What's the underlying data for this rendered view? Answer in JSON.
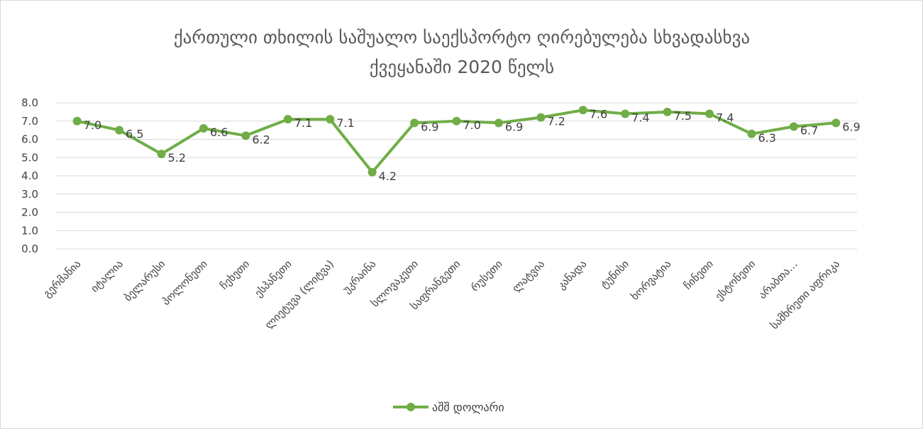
{
  "chart_data": {
    "type": "line",
    "title": "ქართული თხილის საშუალო საექსპორტო ღირებულება სხვადასხვა ქვეყანაში 2020 წელს",
    "title_lines": [
      "ქართული თხილის საშუალო საექსპორტო ღირებულება სხვადასხვა",
      "ქვეყანაში 2020 წელს"
    ],
    "xlabel": "",
    "ylabel": "",
    "ylim": [
      0,
      8
    ],
    "yticks": [
      "0.0",
      "1.0",
      "2.0",
      "3.0",
      "4.0",
      "5.0",
      "6.0",
      "7.0",
      "8.0"
    ],
    "grid": true,
    "legend_position": "bottom",
    "categories": [
      "გერმანია",
      "იტალია",
      "ბელარუსი",
      "პოლონეთი",
      "ჩეხეთი",
      "ესპანეთი",
      "ლიეტუვა (ლიტვა)",
      "უკრაინა",
      "სლოვაკეთი",
      "საფრანგეთი",
      "რუსეთი",
      "ლატვია",
      "კანადა",
      "ტუნისი",
      "ხორვატია",
      "ჩინეთი",
      "ესტონეთი",
      "არაბთა…",
      "სამხრეთი აფრიკა"
    ],
    "series": [
      {
        "name": "აშშ დოლარი",
        "color": "#70ad47",
        "values": [
          7.0,
          6.5,
          5.2,
          6.6,
          6.2,
          7.1,
          7.1,
          4.2,
          6.9,
          7.0,
          6.9,
          7.2,
          7.6,
          7.4,
          7.5,
          7.4,
          6.3,
          6.7,
          6.9
        ],
        "data_labels": [
          "7.0",
          "6.5",
          "5.2",
          "6.6",
          "6.2",
          "7.1",
          "7.1",
          "4.2",
          "6.9",
          "7.0",
          "6.9",
          "7.2",
          "7.6",
          "7.4",
          "7.5",
          "7.4",
          "6.3",
          "6.7",
          "6.9"
        ]
      }
    ]
  }
}
